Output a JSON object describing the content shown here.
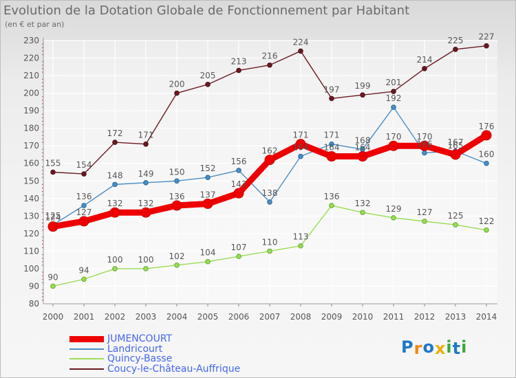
{
  "title": "Evolution de la Dotation Globale de Fonctionnement par Habitant",
  "subtitle": "(en € et par an)",
  "brand": {
    "letters": [
      {
        "ch": "P",
        "color": "#1f78c8"
      },
      {
        "ch": "r",
        "color": "#f08a10"
      },
      {
        "ch": "o",
        "color": "#1f78c8"
      },
      {
        "ch": "x",
        "color": "#e8b00c"
      },
      {
        "ch": "i",
        "color": "#3aa83a"
      },
      {
        "ch": "t",
        "color": "#1f78c8"
      },
      {
        "ch": "i",
        "color": "#3aa83a"
      }
    ]
  },
  "chart_data": {
    "type": "line",
    "title": "Evolution de la Dotation Globale de Fonctionnement par Habitant",
    "ylabel": "(en € et par an)",
    "xlabel": "",
    "categories": [
      "2000",
      "2001",
      "2002",
      "2003",
      "2004",
      "2005",
      "2006",
      "2007",
      "2008",
      "2009",
      "2010",
      "2011",
      "2012",
      "2013",
      "2014"
    ],
    "ylim": [
      80,
      230
    ],
    "yticks": [
      80,
      90,
      100,
      110,
      120,
      130,
      140,
      150,
      160,
      170,
      180,
      190,
      200,
      210,
      220,
      230
    ],
    "grid": true,
    "legend_position": "bottom-left",
    "series": [
      {
        "name": "JUMENCOURT",
        "color": "#ee0000",
        "highlight": true,
        "values": [
          124,
          127,
          132,
          132,
          136,
          137,
          143,
          162,
          171,
          164,
          164,
          170,
          170,
          165,
          176
        ]
      },
      {
        "name": "Landricourt",
        "color": "#4b8ec4",
        "values": [
          125,
          136,
          148,
          149,
          150,
          152,
          156,
          138,
          164,
          171,
          168,
          192,
          166,
          167,
          160
        ]
      },
      {
        "name": "Quincy-Basse",
        "color": "#99dd55",
        "values": [
          90,
          94,
          100,
          100,
          102,
          104,
          107,
          110,
          113,
          136,
          132,
          129,
          127,
          125,
          122
        ]
      },
      {
        "name": "Coucy-le-Château-Auffrique",
        "color": "#6b1a22",
        "values": [
          155,
          154,
          172,
          171,
          200,
          205,
          213,
          216,
          224,
          197,
          199,
          201,
          214,
          225,
          227
        ]
      }
    ]
  }
}
